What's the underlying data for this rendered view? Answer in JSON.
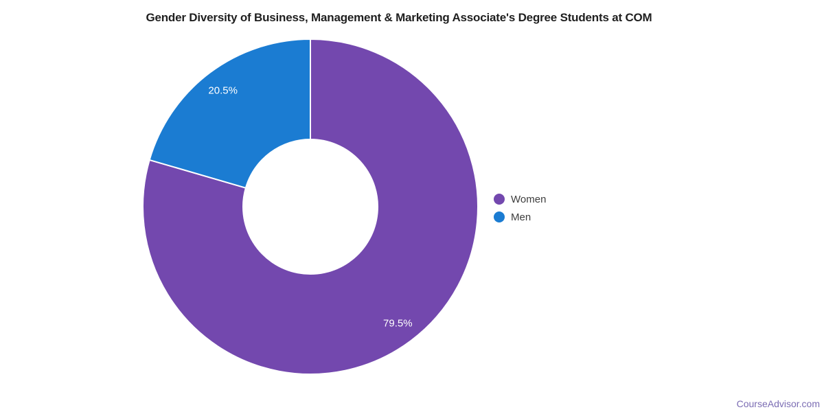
{
  "chart_data": {
    "type": "pie",
    "subtype": "donut",
    "title": "Gender Diversity of Business, Management & Marketing Associate's Degree Students at COM",
    "labels": [
      "Women",
      "Men"
    ],
    "values": [
      79.5,
      20.5
    ],
    "slice_labels": [
      "79.5%",
      "20.5%"
    ],
    "unit": "percent",
    "colors": [
      "#7348ae",
      "#1b7cd2"
    ],
    "slice_separator_color": "#ffffff",
    "start_angle_deg": 0,
    "direction": "clockwise",
    "legend_position": "right",
    "legend": [
      {
        "label": "Women",
        "color": "#7348ae"
      },
      {
        "label": "Men",
        "color": "#1b7cd2"
      }
    ]
  },
  "watermark": "CourseAdvisor.com"
}
